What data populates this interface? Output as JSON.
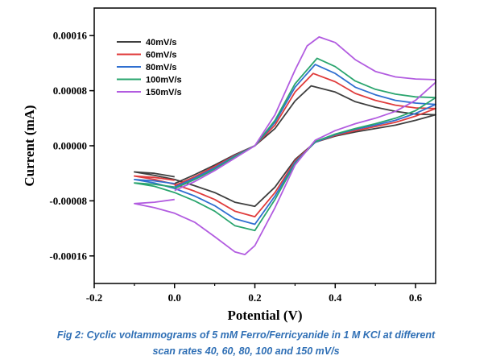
{
  "chart_data": {
    "type": "line",
    "xlabel": "Potential (V)",
    "ylabel": "Current (mA)",
    "xlim": [
      -0.2,
      0.65
    ],
    "ylim": [
      -0.0002,
      0.0002
    ],
    "xticks": [
      -0.2,
      0.0,
      0.2,
      0.4,
      0.6
    ],
    "xtick_labels": [
      "-0.2",
      "0.0",
      "0.2",
      "0.4",
      "0.6"
    ],
    "yticks": [
      -0.00016,
      -8e-05,
      0.0,
      8e-05,
      0.00016
    ],
    "ytick_labels": [
      "-0.00016",
      "-0.00008",
      "0.00000",
      "0.00008",
      "0.00016"
    ],
    "legend_position": "top-left",
    "grid": false,
    "series": [
      {
        "name": "40mV/s",
        "color": "#3f3f3f",
        "x": [
          0.0,
          0.05,
          0.1,
          0.15,
          0.2,
          0.25,
          0.3,
          0.34,
          0.4,
          0.45,
          0.5,
          0.55,
          0.6,
          0.65,
          0.65,
          0.6,
          0.55,
          0.5,
          0.45,
          0.4,
          0.35,
          0.3,
          0.25,
          0.2,
          0.15,
          0.1,
          0.05,
          0.0,
          -0.05,
          -0.1,
          -0.1,
          -0.05,
          0.0
        ],
        "y": [
          -5.5e-05,
          -4.2e-05,
          -2.8e-05,
          -1.3e-05,
          0.0,
          2.5e-05,
          6.5e-05,
          8.7e-05,
          7.8e-05,
          6.4e-05,
          5.6e-05,
          5e-05,
          4.6e-05,
          4.5e-05,
          4.5e-05,
          3.7e-05,
          3e-05,
          2.5e-05,
          2e-05,
          1.4e-05,
          5e-06,
          -2e-05,
          -6e-05,
          -8.8e-05,
          -8.2e-05,
          -6.8e-05,
          -5.8e-05,
          -4.9e-05,
          -4.3e-05,
          -3.8e-05,
          -3.8e-05,
          -4e-05,
          -4.5e-05
        ]
      },
      {
        "name": "60mV/s",
        "color": "#e03c3c",
        "x": [
          0.0,
          0.05,
          0.1,
          0.15,
          0.2,
          0.25,
          0.3,
          0.345,
          0.4,
          0.45,
          0.5,
          0.55,
          0.6,
          0.65,
          0.65,
          0.6,
          0.55,
          0.5,
          0.45,
          0.4,
          0.35,
          0.3,
          0.25,
          0.2,
          0.15,
          0.1,
          0.05,
          0.0,
          -0.05,
          -0.1,
          -0.1,
          -0.05,
          0.0
        ],
        "y": [
          -5.8e-05,
          -4.5e-05,
          -3e-05,
          -1.4e-05,
          0.0,
          3e-05,
          7.8e-05,
          0.000105,
          9.3e-05,
          7.6e-05,
          6.6e-05,
          5.9e-05,
          5.5e-05,
          5.4e-05,
          5.4e-05,
          4.3e-05,
          3.4e-05,
          2.8e-05,
          2.2e-05,
          1.5e-05,
          5e-06,
          -2.2e-05,
          -6.8e-05,
          -0.000103,
          -9.5e-05,
          -7.8e-05,
          -6.6e-05,
          -5.6e-05,
          -4.9e-05,
          -4.4e-05,
          -4.4e-05,
          -4.6e-05,
          -5e-05
        ]
      },
      {
        "name": "80mV/s",
        "color": "#2f6fd0",
        "x": [
          0.0,
          0.05,
          0.1,
          0.15,
          0.2,
          0.25,
          0.3,
          0.35,
          0.4,
          0.45,
          0.5,
          0.55,
          0.6,
          0.65,
          0.65,
          0.6,
          0.55,
          0.5,
          0.45,
          0.4,
          0.35,
          0.3,
          0.25,
          0.2,
          0.15,
          0.1,
          0.05,
          0.0,
          -0.05,
          -0.1,
          -0.1,
          -0.05,
          0.0
        ],
        "y": [
          -6e-05,
          -4.7e-05,
          -3.2e-05,
          -1.5e-05,
          0.0,
          3.4e-05,
          8.5e-05,
          0.000118,
          0.000105,
          8.5e-05,
          7.4e-05,
          6.6e-05,
          6.2e-05,
          6e-05,
          6e-05,
          4.7e-05,
          3.7e-05,
          3e-05,
          2.4e-05,
          1.6e-05,
          5e-06,
          -2.4e-05,
          -7.3e-05,
          -0.000114,
          -0.000106,
          -8.7e-05,
          -7.3e-05,
          -6.2e-05,
          -5.4e-05,
          -4.9e-05,
          -4.9e-05,
          -5.1e-05,
          -5.5e-05
        ]
      },
      {
        "name": "100mV/s",
        "color": "#2aa56e",
        "x": [
          0.0,
          0.05,
          0.1,
          0.15,
          0.2,
          0.25,
          0.3,
          0.355,
          0.4,
          0.45,
          0.5,
          0.55,
          0.6,
          0.65,
          0.65,
          0.6,
          0.55,
          0.5,
          0.45,
          0.4,
          0.35,
          0.3,
          0.25,
          0.2,
          0.15,
          0.1,
          0.05,
          0.0,
          -0.05,
          -0.1,
          -0.1,
          -0.05,
          0.0
        ],
        "y": [
          -6.2e-05,
          -4.9e-05,
          -3.4e-05,
          -1.6e-05,
          0.0,
          3.7e-05,
          9e-05,
          0.000127,
          0.000115,
          9.4e-05,
          8.2e-05,
          7.5e-05,
          7.1e-05,
          7e-05,
          7e-05,
          5.1e-05,
          4e-05,
          3.2e-05,
          2.5e-05,
          1.7e-05,
          6e-06,
          -2.6e-05,
          -7.8e-05,
          -0.000123,
          -0.000116,
          -9.5e-05,
          -8e-05,
          -6.8e-05,
          -5.9e-05,
          -5.4e-05,
          -5.4e-05,
          -5.6e-05,
          -6e-05
        ]
      },
      {
        "name": "150mV/s",
        "color": "#b25ce0",
        "x": [
          0.0,
          0.05,
          0.1,
          0.15,
          0.2,
          0.25,
          0.3,
          0.33,
          0.36,
          0.4,
          0.45,
          0.5,
          0.55,
          0.6,
          0.65,
          0.65,
          0.6,
          0.55,
          0.5,
          0.45,
          0.4,
          0.35,
          0.3,
          0.25,
          0.2,
          0.175,
          0.15,
          0.1,
          0.05,
          0.0,
          -0.05,
          -0.1,
          -0.1,
          -0.05,
          0.0
        ],
        "y": [
          -6.5e-05,
          -5.2e-05,
          -3.6e-05,
          -1.8e-05,
          0.0,
          4.5e-05,
          0.00011,
          0.000145,
          0.000158,
          0.00015,
          0.000125,
          0.000108,
          0.0001,
          9.7e-05,
          9.6e-05,
          9.2e-05,
          6.6e-05,
          5e-05,
          4e-05,
          3.2e-05,
          2.2e-05,
          8e-06,
          -2.8e-05,
          -9e-05,
          -0.000145,
          -0.000158,
          -0.000154,
          -0.000132,
          -0.000111,
          -9.8e-05,
          -9e-05,
          -8.4e-05,
          -8.4e-05,
          -8.2e-05,
          -7.8e-05
        ]
      }
    ]
  },
  "caption": {
    "line1": "Fig 2: Cyclic voltammograms of 5 mM Ferro/Ferricyanide in 1 M KCl at different",
    "line2": "scan rates 40, 60, 80, 100 and 150 mV/s"
  }
}
